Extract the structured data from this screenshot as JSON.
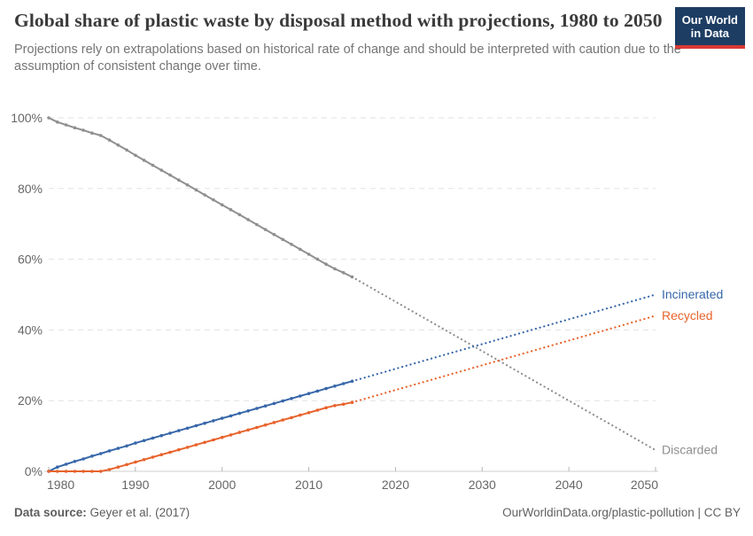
{
  "header": {
    "title": "Global share of plastic waste by disposal method with projections, 1980 to 2050",
    "subtitle": "Projections rely on extrapolations based on historical rate of change and should be interpreted with caution due to the assumption of consistent change over time.",
    "logo": {
      "line1": "Our World",
      "line2": "in Data",
      "bg_color": "#1d3d63",
      "accent_color": "#d93a34"
    }
  },
  "footer": {
    "source_label": "Data source:",
    "source_value": "Geyer et al. (2017)",
    "right_text": "OurWorldinData.org/plastic-pollution | CC BY"
  },
  "chart_data": {
    "type": "line",
    "title": "Global share of plastic waste by disposal method with projections, 1980 to 2050",
    "xlabel": "",
    "ylabel": "",
    "x": {
      "min": 1980,
      "max": 2050,
      "ticks": [
        1980,
        1990,
        2000,
        2010,
        2020,
        2030,
        2040,
        2050
      ]
    },
    "y": {
      "min": 0,
      "max": 100,
      "ticks": [
        0,
        20,
        40,
        60,
        80,
        100
      ],
      "tick_suffix": "%"
    },
    "grid": true,
    "legend_position": "right-end-labels",
    "projection_style": "dotted",
    "series": [
      {
        "name": "Discarded",
        "color": "#8f8f8f",
        "label_color": "#8f8f8f",
        "historical": {
          "start_year": 1980,
          "values": [
            100,
            98.8,
            98,
            97.2,
            96.5,
            95.7,
            95,
            93.7,
            92.3,
            90.9,
            89.4,
            88,
            86.6,
            85.2,
            83.8,
            82.4,
            81,
            79.6,
            78.2,
            76.8,
            75.4,
            74,
            72.6,
            71.2,
            69.8,
            68.4,
            67,
            65.6,
            64.2,
            62.8,
            61.4,
            60,
            58.6,
            57.3,
            56.2,
            55
          ]
        },
        "projection": {
          "years": [
            2015,
            2020,
            2025,
            2030,
            2035,
            2040,
            2045,
            2050
          ],
          "values": [
            55,
            48,
            41,
            34,
            27,
            20,
            13,
            6
          ]
        }
      },
      {
        "name": "Incinerated",
        "color": "#3767a9",
        "label_color": "#3767a9",
        "historical": {
          "start_year": 1980,
          "values": [
            0,
            1.2,
            2,
            2.8,
            3.5,
            4.3,
            5,
            5.8,
            6.5,
            7.2,
            8,
            8.7,
            9.4,
            10.1,
            10.8,
            11.5,
            12.2,
            12.9,
            13.6,
            14.3,
            15,
            15.7,
            16.4,
            17.1,
            17.8,
            18.5,
            19.2,
            19.9,
            20.6,
            21.3,
            22,
            22.7,
            23.4,
            24.1,
            24.8,
            25.5
          ]
        },
        "projection": {
          "years": [
            2015,
            2020,
            2025,
            2030,
            2035,
            2040,
            2045,
            2050
          ],
          "values": [
            25.5,
            29,
            32.5,
            36,
            39.5,
            43,
            46.5,
            50
          ]
        }
      },
      {
        "name": "Recycled",
        "color": "#e8632c",
        "label_color": "#e8632c",
        "historical": {
          "start_year": 1980,
          "values": [
            0,
            0,
            0,
            0,
            0,
            0,
            0,
            0.5,
            1.2,
            1.9,
            2.6,
            3.3,
            4,
            4.7,
            5.4,
            6.1,
            6.8,
            7.5,
            8.2,
            8.9,
            9.6,
            10.3,
            11,
            11.7,
            12.4,
            13.1,
            13.8,
            14.5,
            15.2,
            15.9,
            16.6,
            17.3,
            18,
            18.6,
            19,
            19.5
          ]
        },
        "projection": {
          "years": [
            2015,
            2020,
            2025,
            2030,
            2035,
            2040,
            2045,
            2050
          ],
          "values": [
            19.5,
            23,
            26.5,
            30,
            33.5,
            37,
            40.5,
            44
          ]
        }
      }
    ],
    "style": {
      "grid_color": "#e2e2e2",
      "axis_color": "#cfcfcf",
      "tick_mark_color": "#b5b5b5",
      "tick_label_color": "#666666"
    }
  }
}
